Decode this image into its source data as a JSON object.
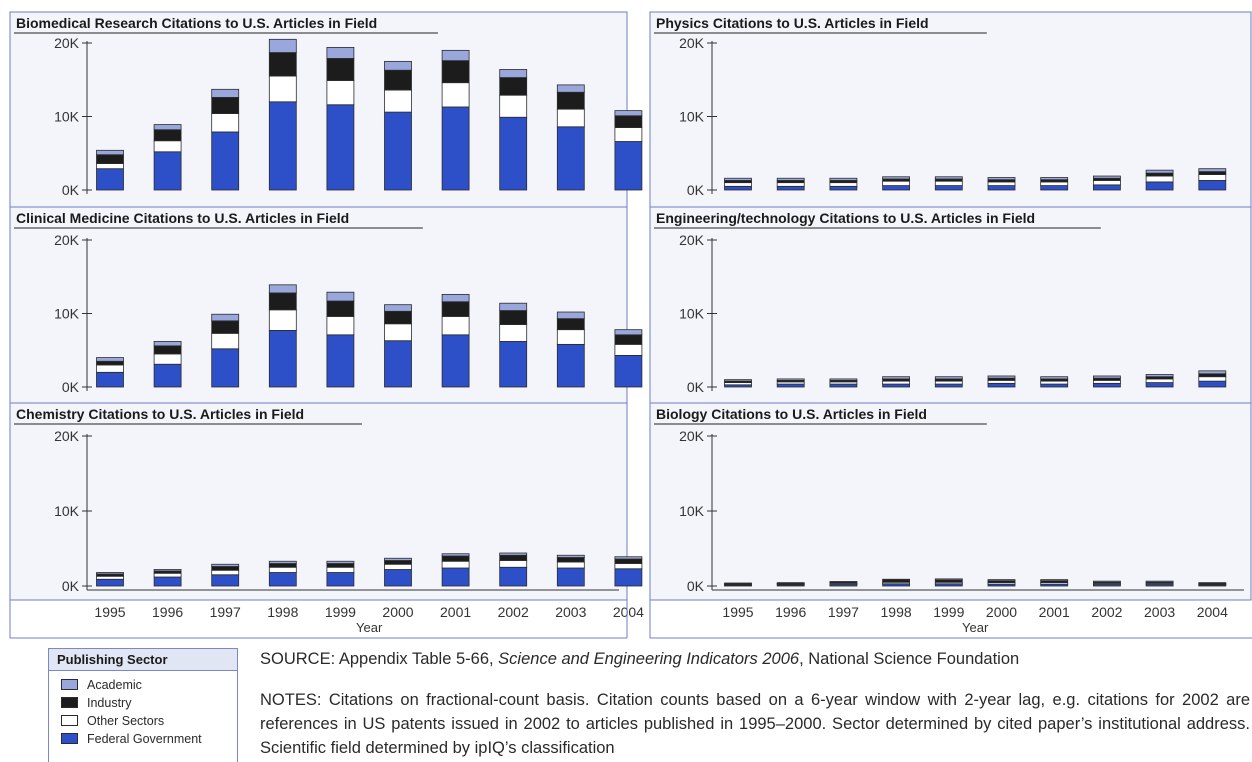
{
  "legend": {
    "title": "Publishing Sector",
    "items": [
      {
        "label": "Academic",
        "color": "#9aa7dc"
      },
      {
        "label": "Industry",
        "color": "#1c1c1c"
      },
      {
        "label": "Other Sectors",
        "color": "#ffffff"
      },
      {
        "label": "Federal Government",
        "color": "#2d4fc8"
      }
    ]
  },
  "source": {
    "prefix": "SOURCE: Appendix Table 5-66, ",
    "italic": "Science and Engineering Indicators 2006",
    "suffix": ", National Science Foundation"
  },
  "notes": {
    "text": "NOTES: Citations on fractional-count basis.  Citation counts based on a 6-year window with 2-year lag, e.g. citations for 2002 are references in US patents issued in 2002 to articles published in 1995–2000.  Sector determined by cited paper’s institutional address.  Scientific field determined by ipIQ’s classification"
  },
  "colors": {
    "academic": "#9aa7dc",
    "industry": "#1c1c1c",
    "other": "#ffffff",
    "federal": "#2d4fc8",
    "frame": "#6f7fc2",
    "panel_bg": "#eef1fa"
  },
  "chart_data": [
    {
      "type": "bar",
      "stacked": true,
      "title": "Biomedical Research Citations to U.S. Articles in Field",
      "categories": [
        "1995",
        "1996",
        "1997",
        "1998",
        "1999",
        "2000",
        "2001",
        "2002",
        "2003",
        "2004"
      ],
      "ylim": [
        0,
        20000
      ],
      "yticks": [
        "0K",
        "10K",
        "20K"
      ],
      "series": [
        {
          "name": "Federal Government",
          "values": [
            2900,
            5200,
            7900,
            12000,
            11600,
            10600,
            11300,
            9900,
            8600,
            6600
          ]
        },
        {
          "name": "Other Sectors",
          "values": [
            700,
            1500,
            2500,
            3500,
            3300,
            3000,
            3300,
            3000,
            2400,
            1900
          ]
        },
        {
          "name": "Industry",
          "values": [
            1200,
            1500,
            2200,
            3200,
            3000,
            2700,
            3000,
            2400,
            2300,
            1600
          ]
        },
        {
          "name": "Academic",
          "values": [
            600,
            700,
            1100,
            1800,
            1500,
            1200,
            1400,
            1100,
            1000,
            700
          ]
        }
      ]
    },
    {
      "type": "bar",
      "stacked": true,
      "title": "Physics Citations to U.S. Articles in Field",
      "categories": [
        "1995",
        "1996",
        "1997",
        "1998",
        "1999",
        "2000",
        "2001",
        "2002",
        "2003",
        "2004"
      ],
      "ylim": [
        0,
        20000
      ],
      "yticks": [
        "0K",
        "10K",
        "20K"
      ],
      "series": [
        {
          "name": "Federal Government",
          "values": [
            500,
            500,
            500,
            600,
            600,
            600,
            600,
            700,
            1100,
            1300
          ]
        },
        {
          "name": "Other Sectors",
          "values": [
            500,
            500,
            500,
            600,
            600,
            500,
            500,
            600,
            800,
            800
          ]
        },
        {
          "name": "Industry",
          "values": [
            300,
            300,
            300,
            300,
            300,
            300,
            300,
            300,
            400,
            400
          ]
        },
        {
          "name": "Academic",
          "values": [
            300,
            300,
            300,
            300,
            300,
            300,
            300,
            300,
            400,
            400
          ]
        }
      ]
    },
    {
      "type": "bar",
      "stacked": true,
      "title": "Clinical Medicine Citations to U.S. Articles in Field",
      "categories": [
        "1995",
        "1996",
        "1997",
        "1998",
        "1999",
        "2000",
        "2001",
        "2002",
        "2003",
        "2004"
      ],
      "ylim": [
        0,
        20000
      ],
      "yticks": [
        "0K",
        "10K",
        "20K"
      ],
      "series": [
        {
          "name": "Federal Government",
          "values": [
            2000,
            3100,
            5200,
            7700,
            7100,
            6300,
            7100,
            6200,
            5800,
            4300
          ]
        },
        {
          "name": "Other Sectors",
          "values": [
            1000,
            1400,
            2100,
            2800,
            2500,
            2300,
            2500,
            2300,
            2000,
            1500
          ]
        },
        {
          "name": "Industry",
          "values": [
            500,
            1100,
            1700,
            2300,
            2100,
            1700,
            2000,
            1900,
            1500,
            1300
          ]
        },
        {
          "name": "Academic",
          "values": [
            500,
            600,
            900,
            1100,
            1200,
            900,
            1000,
            1000,
            900,
            700
          ]
        }
      ]
    },
    {
      "type": "bar",
      "stacked": true,
      "title": "Engineering/technology Citations to U.S. Articles in Field",
      "categories": [
        "1995",
        "1996",
        "1997",
        "1998",
        "1999",
        "2000",
        "2001",
        "2002",
        "2003",
        "2004"
      ],
      "ylim": [
        0,
        20000
      ],
      "yticks": [
        "0K",
        "10K",
        "20K"
      ],
      "series": [
        {
          "name": "Federal Government",
          "values": [
            300,
            400,
            400,
            400,
            400,
            500,
            400,
            500,
            600,
            800
          ]
        },
        {
          "name": "Other Sectors",
          "values": [
            300,
            300,
            300,
            400,
            400,
            400,
            400,
            400,
            500,
            600
          ]
        },
        {
          "name": "Industry",
          "values": [
            200,
            200,
            200,
            300,
            300,
            300,
            300,
            300,
            300,
            400
          ]
        },
        {
          "name": "Academic",
          "values": [
            200,
            200,
            200,
            300,
            300,
            300,
            300,
            300,
            300,
            400
          ]
        }
      ]
    },
    {
      "type": "bar",
      "stacked": true,
      "title": "Chemistry Citations to U.S. Articles in Field",
      "categories": [
        "1995",
        "1996",
        "1997",
        "1998",
        "1999",
        "2000",
        "2001",
        "2002",
        "2003",
        "2004"
      ],
      "ylim": [
        0,
        20000
      ],
      "yticks": [
        "0K",
        "10K",
        "20K"
      ],
      "series": [
        {
          "name": "Federal Government",
          "values": [
            900,
            1200,
            1500,
            1800,
            1800,
            2200,
            2400,
            2500,
            2400,
            2300
          ]
        },
        {
          "name": "Other Sectors",
          "values": [
            400,
            500,
            600,
            700,
            700,
            700,
            900,
            900,
            800,
            700
          ]
        },
        {
          "name": "Industry",
          "values": [
            300,
            300,
            500,
            500,
            500,
            500,
            700,
            700,
            600,
            600
          ]
        },
        {
          "name": "Academic",
          "values": [
            200,
            200,
            300,
            300,
            300,
            300,
            300,
            300,
            300,
            300
          ]
        }
      ]
    },
    {
      "type": "bar",
      "stacked": true,
      "title": "Biology Citations to U.S. Articles in Field",
      "categories": [
        "1995",
        "1996",
        "1997",
        "1998",
        "1999",
        "2000",
        "2001",
        "2002",
        "2003",
        "2004"
      ],
      "ylim": [
        0,
        20000
      ],
      "yticks": [
        "0K",
        "10K",
        "20K"
      ],
      "series": [
        {
          "name": "Federal Government",
          "values": [
            100,
            150,
            200,
            300,
            300,
            250,
            250,
            200,
            200,
            150
          ]
        },
        {
          "name": "Other Sectors",
          "values": [
            100,
            100,
            150,
            200,
            200,
            200,
            200,
            150,
            150,
            100
          ]
        },
        {
          "name": "Industry",
          "values": [
            100,
            100,
            150,
            300,
            300,
            250,
            250,
            150,
            150,
            100
          ]
        },
        {
          "name": "Academic",
          "values": [
            100,
            100,
            100,
            100,
            150,
            150,
            150,
            150,
            150,
            100
          ]
        }
      ]
    }
  ],
  "xlabel": "Year"
}
